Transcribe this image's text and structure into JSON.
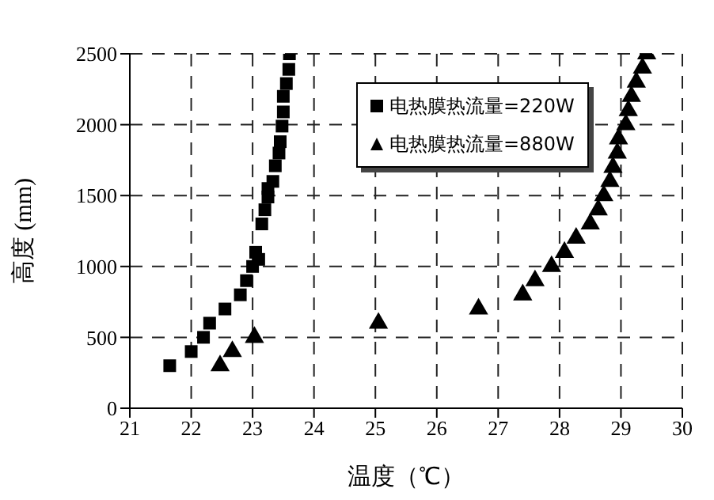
{
  "chart_data": {
    "type": "scatter",
    "xlabel": "温度（℃）",
    "ylabel": "高度 (mm)",
    "xlim": [
      21,
      30
    ],
    "xticks": [
      21,
      22,
      23,
      24,
      25,
      26,
      27,
      28,
      29,
      30
    ],
    "ylim": [
      0,
      2500
    ],
    "yticks": [
      0,
      500,
      1000,
      1500,
      2000,
      2500
    ],
    "grid": true,
    "legend": "top right",
    "series": [
      {
        "name": "电热膜热流量=220W",
        "color": "#000000",
        "marker": "square",
        "x": [
          21.65,
          22.0,
          22.2,
          22.3,
          22.55,
          22.8,
          22.9,
          23.0,
          23.05,
          23.1,
          23.15,
          23.2,
          23.25,
          23.25,
          23.33,
          23.37,
          23.43,
          23.45,
          23.48,
          23.5,
          23.5,
          23.55,
          23.59,
          23.6
        ],
        "values": [
          300,
          400,
          500,
          600,
          700,
          800,
          900,
          1000,
          1100,
          1050,
          1300,
          1400,
          1490,
          1550,
          1600,
          1710,
          1800,
          1880,
          1990,
          2090,
          2200,
          2290,
          2390,
          2500
        ]
      },
      {
        "name": "电热膜热流量=880W",
        "color": "#000000",
        "marker": "triangle",
        "x": [
          22.47,
          22.67,
          23.03,
          25.05,
          26.68,
          27.4,
          27.6,
          27.87,
          28.08,
          28.27,
          28.5,
          28.63,
          28.72,
          28.82,
          28.87,
          28.94,
          28.96,
          29.08,
          29.12,
          29.17,
          29.25,
          29.35,
          29.42
        ],
        "values": [
          300,
          400,
          500,
          600,
          700,
          800,
          900,
          1000,
          1100,
          1200,
          1300,
          1400,
          1500,
          1600,
          1700,
          1800,
          1900,
          2000,
          2100,
          2200,
          2300,
          2400,
          2500
        ]
      }
    ]
  }
}
